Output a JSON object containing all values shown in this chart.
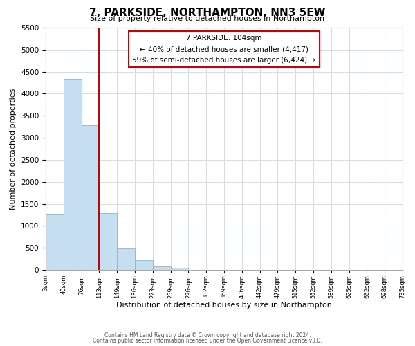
{
  "title": "7, PARKSIDE, NORTHAMPTON, NN3 5EW",
  "subtitle": "Size of property relative to detached houses in Northampton",
  "xlabel": "Distribution of detached houses by size in Northampton",
  "ylabel": "Number of detached properties",
  "bar_values": [
    1270,
    4330,
    3280,
    1285,
    480,
    225,
    75,
    50,
    0,
    0,
    0,
    0,
    0,
    0,
    0,
    0,
    0,
    0,
    0,
    0
  ],
  "bin_labels": [
    "3sqm",
    "40sqm",
    "76sqm",
    "113sqm",
    "149sqm",
    "186sqm",
    "223sqm",
    "259sqm",
    "296sqm",
    "332sqm",
    "369sqm",
    "406sqm",
    "442sqm",
    "479sqm",
    "515sqm",
    "552sqm",
    "589sqm",
    "625sqm",
    "662sqm",
    "698sqm",
    "735sqm"
  ],
  "bar_color": "#c6dff0",
  "bar_edge_color": "#8ab4d4",
  "vline_color": "#cc0000",
  "vline_x": 3.0,
  "ylim": [
    0,
    5500
  ],
  "yticks": [
    0,
    500,
    1000,
    1500,
    2000,
    2500,
    3000,
    3500,
    4000,
    4500,
    5000,
    5500
  ],
  "annotation_title": "7 PARKSIDE: 104sqm",
  "annotation_line1": "← 40% of detached houses are smaller (4,417)",
  "annotation_line2": "59% of semi-detached houses are larger (6,424) →",
  "footer1": "Contains HM Land Registry data © Crown copyright and database right 2024.",
  "footer2": "Contains public sector information licensed under the Open Government Licence v3.0.",
  "background_color": "#ffffff",
  "grid_color": "#d0dcec"
}
